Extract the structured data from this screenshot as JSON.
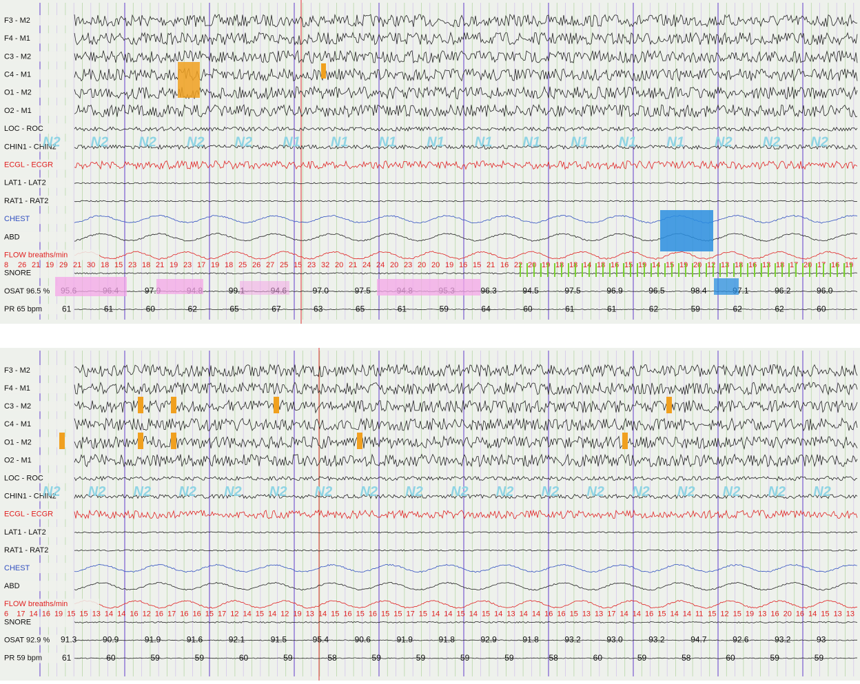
{
  "panels": [
    {
      "channels": [
        "F3 - M2",
        "F4 - M1",
        "C3 - M2",
        "C4 - M1",
        "O1 - M2",
        "O2 - M1",
        "LOC - ROC",
        "CHIN1 - CHIN2",
        "ECGL - ECGR",
        "LAT1 - LAT2",
        "RAT1 - RAT2",
        "CHEST",
        "ABD",
        "FLOW breaths/min",
        "SNORE",
        "OSAT 96.5 %",
        "PR  65 bpm"
      ],
      "stages": [
        "N2",
        "N2",
        "N2",
        "N2",
        "N2",
        "N1",
        "N1",
        "N1",
        "N1",
        "N1",
        "N1",
        "N1",
        "N1",
        "N1",
        "N2",
        "N2",
        "N2"
      ],
      "flow": [
        "8",
        "26",
        "21",
        "19",
        "29",
        "21",
        "30",
        "18",
        "15",
        "23",
        "18",
        "21",
        "19",
        "23",
        "17",
        "19",
        "18",
        "25",
        "26",
        "27",
        "25",
        "15",
        "23",
        "32",
        "20",
        "21",
        "24",
        "24",
        "20",
        "23",
        "20",
        "20",
        "19",
        "16",
        "15",
        "21",
        "16",
        "22",
        "20",
        "19",
        "18",
        "18",
        "14",
        "18",
        "16",
        "15",
        "19",
        "14",
        "15",
        "19",
        "20",
        "12",
        "13",
        "18",
        "16",
        "13",
        "18",
        "17",
        "20",
        "17",
        "16",
        "19"
      ],
      "osat": [
        "95.6",
        "96.4",
        "97.9",
        "94.8",
        "99.1",
        "94.6",
        "97.0",
        "97.5",
        "94.8",
        "95.3",
        "96.3",
        "94.5",
        "97.5",
        "96.9",
        "96.5",
        "98.4",
        "97.1",
        "96.2",
        "96.0"
      ],
      "pr": [
        "61",
        "61",
        "60",
        "62",
        "65",
        "67",
        "63",
        "65",
        "61",
        "59",
        "64",
        "60",
        "61",
        "61",
        "62",
        "59",
        "62",
        "62",
        "60"
      ]
    },
    {
      "channels": [
        "F3 - M2",
        "F4 - M1",
        "C3 - M2",
        "C4 - M1",
        "O1 - M2",
        "O2 - M1",
        "LOC - ROC",
        "CHIN1 - CHIN2",
        "ECGL - ECGR",
        "LAT1 - LAT2",
        "RAT1 - RAT2",
        "CHEST",
        "ABD",
        "FLOW breaths/min",
        "SNORE",
        "OSAT 92.9 %",
        "PR  59 bpm"
      ],
      "stages": [
        "N2",
        "N2",
        "N2",
        "N2",
        "N2",
        "N2",
        "N2",
        "N2",
        "N2",
        "N2",
        "N2",
        "N2",
        "N2",
        "N2",
        "N2",
        "N2",
        "N2",
        "N2"
      ],
      "flow": [
        "6",
        "17",
        "14",
        "16",
        "19",
        "15",
        "15",
        "13",
        "14",
        "14",
        "16",
        "12",
        "16",
        "17",
        "16",
        "16",
        "15",
        "17",
        "12",
        "14",
        "15",
        "14",
        "12",
        "19",
        "13",
        "14",
        "15",
        "16",
        "15",
        "16",
        "15",
        "15",
        "17",
        "15",
        "14",
        "14",
        "15",
        "14",
        "15",
        "14",
        "13",
        "14",
        "14",
        "16",
        "16",
        "15",
        "13",
        "13",
        "17",
        "14",
        "14",
        "16",
        "15",
        "14",
        "14",
        "11",
        "15",
        "12",
        "15",
        "19",
        "13",
        "16",
        "20",
        "16",
        "14",
        "15",
        "13",
        "13"
      ],
      "osat": [
        "91.3",
        "90.9",
        "91.9",
        "91.6",
        "92.1",
        "91.5",
        "95.4",
        "90.6",
        "91.9",
        "91.8",
        "92.9",
        "91.8",
        "93.2",
        "93.0",
        "93.2",
        "94.7",
        "92.6",
        "93.2",
        "93"
      ],
      "pr": [
        "61",
        "60",
        "59",
        "59",
        "60",
        "59",
        "58",
        "59",
        "59",
        "59",
        "59",
        "58",
        "60",
        "59",
        "58",
        "60",
        "59",
        "59"
      ]
    }
  ]
}
